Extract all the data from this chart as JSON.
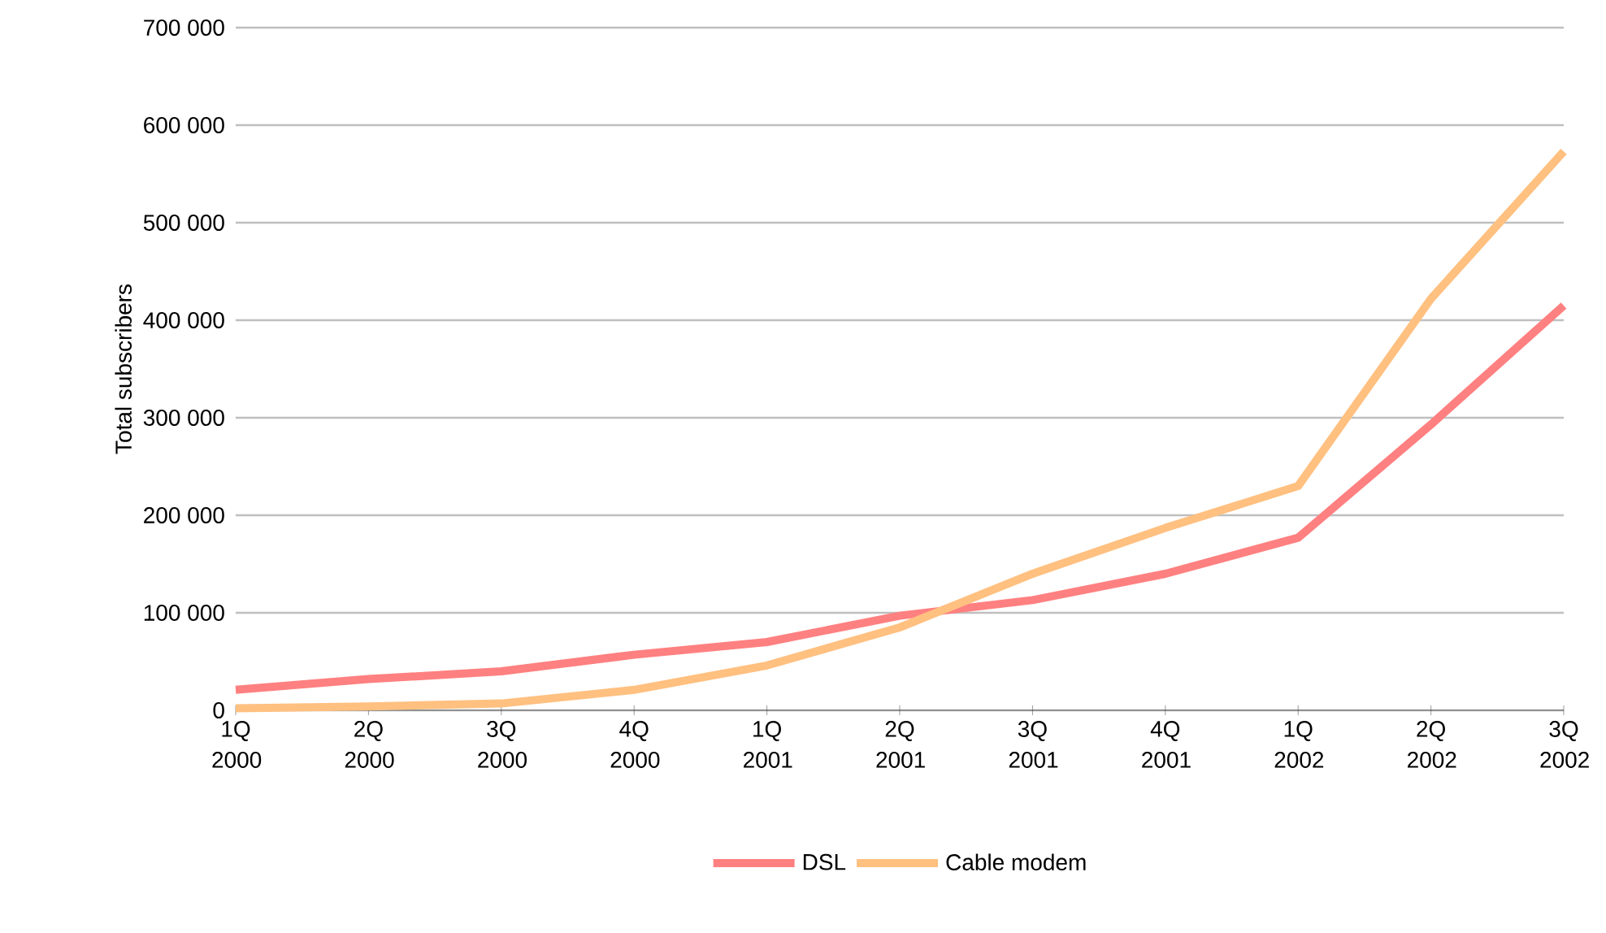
{
  "chart_data": {
    "type": "line",
    "ylabel": "Total subscribers",
    "categories": [
      "1Q 2000",
      "2Q 2000",
      "3Q 2000",
      "4Q 2000",
      "1Q 2001",
      "2Q 2001",
      "3Q 2001",
      "4Q 2001",
      "1Q 2002",
      "2Q 2002",
      "3Q 2002"
    ],
    "series": [
      {
        "name": "DSL",
        "color": "#ff8080",
        "values": [
          21000,
          32000,
          40000,
          57000,
          70000,
          97000,
          113000,
          140000,
          177000,
          293000,
          415000
        ]
      },
      {
        "name": "Cable modem",
        "color": "#ffc080",
        "values": [
          2000,
          4000,
          7000,
          21000,
          46000,
          85000,
          140000,
          187000,
          230000,
          422000,
          573000
        ]
      }
    ],
    "ylim": [
      0,
      700000
    ],
    "yticks": [
      0,
      {
        "value": 100000,
        "label": "100 000"
      },
      {
        "value": 200000,
        "label": "200 000"
      },
      {
        "value": 300000,
        "label": "300 000"
      },
      {
        "value": 400000,
        "label": "400 000"
      },
      {
        "value": 500000,
        "label": "500 000"
      },
      {
        "value": 600000,
        "label": "600 000"
      },
      {
        "value": 700000,
        "label": "700 000"
      }
    ],
    "grid": "y",
    "legend": "bottom",
    "marker": "none",
    "line_style": "solid"
  }
}
